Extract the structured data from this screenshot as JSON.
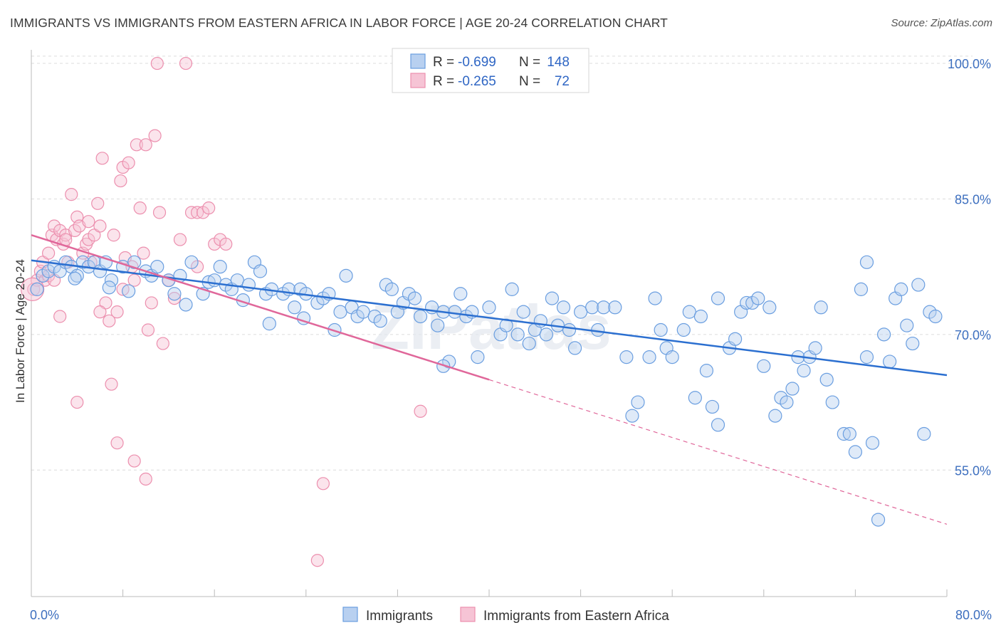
{
  "title": "IMMIGRANTS VS IMMIGRANTS FROM EASTERN AFRICA IN LABOR FORCE | AGE 20-24 CORRELATION CHART",
  "source": "Source: ZipAtlas.com",
  "watermark": "ZIPatlas",
  "colors": {
    "blue": "#6a9ee0",
    "blue_fill": "#b8d0f0",
    "blue_line": "#2b6fd0",
    "pink": "#ec8fae",
    "pink_fill": "#f6c4d5",
    "pink_line": "#e0679a",
    "tick_text": "#3d6fbf"
  },
  "legend": {
    "rows": [
      {
        "r_label": "R =",
        "r_value": "-0.699",
        "n_label": "N =",
        "n_value": "148"
      },
      {
        "r_label": "R =",
        "r_value": "-0.265",
        "n_label": "N =",
        "n_value": "72"
      }
    ]
  },
  "chart_data": {
    "type": "scatter",
    "ylabel": "In Labor Force | Age 20-24",
    "x_tick_labels": [
      "0.0%",
      "80.0%"
    ],
    "y_tick_labels": [
      "100.0%",
      "85.0%",
      "70.0%",
      "55.0%"
    ],
    "y_ticks": [
      100,
      85,
      70,
      55
    ],
    "xlim": [
      0,
      80
    ],
    "ylim": [
      41,
      101.5
    ],
    "grid": true,
    "legend_position": "top-center",
    "series": [
      {
        "name": "Immigrants",
        "R": -0.699,
        "N": 148,
        "trend": {
          "x": [
            0,
            80
          ],
          "y": [
            78.2,
            65.5
          ]
        },
        "points": [
          [
            0.5,
            75
          ],
          [
            1,
            76.5
          ],
          [
            1.5,
            77
          ],
          [
            2,
            77.5
          ],
          [
            2.5,
            77
          ],
          [
            3,
            78
          ],
          [
            3.5,
            77.5
          ],
          [
            4,
            76.5
          ],
          [
            4.5,
            78
          ],
          [
            5,
            77.5
          ],
          [
            5.5,
            78
          ],
          [
            6,
            77
          ],
          [
            6.5,
            78
          ],
          [
            7,
            76
          ],
          [
            8,
            77.5
          ],
          [
            9,
            78
          ],
          [
            10,
            77
          ],
          [
            10.5,
            76.5
          ],
          [
            11,
            77.5
          ],
          [
            12,
            76
          ],
          [
            12.5,
            74.5
          ],
          [
            13,
            76.5
          ],
          [
            14,
            78
          ],
          [
            15,
            74.5
          ],
          [
            15.5,
            75.8
          ],
          [
            16,
            76
          ],
          [
            16.5,
            77.5
          ],
          [
            17,
            75.5
          ],
          [
            17.5,
            75
          ],
          [
            18,
            76
          ],
          [
            19,
            75.5
          ],
          [
            19.5,
            78
          ],
          [
            20,
            77
          ],
          [
            20.5,
            74.5
          ],
          [
            21,
            75
          ],
          [
            22,
            74.5
          ],
          [
            22.5,
            75
          ],
          [
            23,
            73
          ],
          [
            23.5,
            75
          ],
          [
            24,
            74.5
          ],
          [
            25,
            73.5
          ],
          [
            25.5,
            74
          ],
          [
            26,
            74.5
          ],
          [
            27,
            72.5
          ],
          [
            27.5,
            76.5
          ],
          [
            28,
            73
          ],
          [
            28.5,
            72
          ],
          [
            29,
            72.5
          ],
          [
            30,
            72
          ],
          [
            31,
            75.5
          ],
          [
            31.5,
            75
          ],
          [
            32,
            72.5
          ],
          [
            32.5,
            73.5
          ],
          [
            33,
            74.5
          ],
          [
            33.5,
            74
          ],
          [
            34,
            72
          ],
          [
            35,
            73
          ],
          [
            35.5,
            71
          ],
          [
            36,
            72.5
          ],
          [
            36.5,
            67
          ],
          [
            37,
            72.5
          ],
          [
            37.5,
            74.5
          ],
          [
            38,
            72
          ],
          [
            38.5,
            72.5
          ],
          [
            39,
            67.5
          ],
          [
            40,
            73
          ],
          [
            41,
            70
          ],
          [
            41.5,
            71
          ],
          [
            42,
            75
          ],
          [
            42.5,
            70
          ],
          [
            43,
            72.5
          ],
          [
            44,
            70.5
          ],
          [
            45,
            70
          ],
          [
            45.5,
            74
          ],
          [
            46,
            71
          ],
          [
            47,
            70.5
          ],
          [
            47.5,
            68.5
          ],
          [
            48,
            72.5
          ],
          [
            49,
            73
          ],
          [
            49.5,
            70.5
          ],
          [
            50,
            73
          ],
          [
            51,
            73
          ],
          [
            52,
            67.5
          ],
          [
            52.5,
            61
          ],
          [
            53,
            62.5
          ],
          [
            54,
            67.5
          ],
          [
            54.5,
            74
          ],
          [
            55,
            70.5
          ],
          [
            55.5,
            68.5
          ],
          [
            56,
            67.5
          ],
          [
            57,
            70.5
          ],
          [
            57.5,
            72.5
          ],
          [
            58,
            63
          ],
          [
            58.5,
            72
          ],
          [
            59,
            66
          ],
          [
            59.5,
            62
          ],
          [
            60,
            74
          ],
          [
            61,
            68.5
          ],
          [
            61.5,
            69.5
          ],
          [
            62,
            72.5
          ],
          [
            62.5,
            73.5
          ],
          [
            63,
            73.5
          ],
          [
            63.5,
            74
          ],
          [
            64,
            66.5
          ],
          [
            64.5,
            73
          ],
          [
            65,
            61
          ],
          [
            65.5,
            63
          ],
          [
            66,
            62.5
          ],
          [
            66.5,
            64
          ],
          [
            67,
            67.5
          ],
          [
            67.5,
            66
          ],
          [
            68,
            67.5
          ],
          [
            68.5,
            68.5
          ],
          [
            69,
            73
          ],
          [
            69.5,
            65
          ],
          [
            70,
            62.5
          ],
          [
            71,
            59
          ],
          [
            71.5,
            59
          ],
          [
            72,
            57
          ],
          [
            72.5,
            75
          ],
          [
            73,
            78
          ],
          [
            73.5,
            58
          ],
          [
            74,
            49.5
          ],
          [
            74.5,
            70
          ],
          [
            75,
            67
          ],
          [
            75.5,
            74
          ],
          [
            76,
            75
          ],
          [
            76.5,
            71
          ],
          [
            77,
            69
          ],
          [
            77.5,
            75.5
          ],
          [
            78,
            59
          ],
          [
            78.5,
            72.5
          ],
          [
            79,
            72
          ],
          [
            73,
            67.5
          ],
          [
            60,
            60
          ],
          [
            46.5,
            73
          ],
          [
            44.5,
            71.5
          ],
          [
            43.5,
            69
          ],
          [
            36,
            66.5
          ],
          [
            30.5,
            71.5
          ],
          [
            26.5,
            70.5
          ],
          [
            23.8,
            71.8
          ],
          [
            20.8,
            71.2
          ],
          [
            18.5,
            73.8
          ],
          [
            13.5,
            73.3
          ],
          [
            8.5,
            74.8
          ],
          [
            6.8,
            75.2
          ],
          [
            3.8,
            76.2
          ]
        ]
      },
      {
        "name": "Immigrants from Eastern Africa",
        "R": -0.265,
        "N": 72,
        "trend": {
          "x": [
            0,
            40
          ],
          "y": [
            81,
            65
          ]
        },
        "trend_extension": {
          "x": [
            40,
            80
          ],
          "y": [
            65,
            49
          ]
        },
        "points": [
          [
            0.2,
            75
          ],
          [
            0.5,
            76
          ],
          [
            0.8,
            77
          ],
          [
            1,
            78
          ],
          [
            1.2,
            76
          ],
          [
            1.5,
            76.5
          ],
          [
            1.8,
            81
          ],
          [
            2,
            82
          ],
          [
            2.2,
            80.5
          ],
          [
            2.5,
            81.5
          ],
          [
            2.8,
            80
          ],
          [
            3,
            81
          ],
          [
            3.2,
            78
          ],
          [
            3.5,
            85.5
          ],
          [
            3.8,
            81.5
          ],
          [
            4,
            83
          ],
          [
            4.2,
            82
          ],
          [
            4.5,
            79
          ],
          [
            4.8,
            80
          ],
          [
            5,
            80.5
          ],
          [
            5.2,
            78
          ],
          [
            5.5,
            81
          ],
          [
            5.8,
            84.5
          ],
          [
            6,
            82
          ],
          [
            6.2,
            89.5
          ],
          [
            6.5,
            73.5
          ],
          [
            6.8,
            71.5
          ],
          [
            7,
            64.5
          ],
          [
            7.2,
            81
          ],
          [
            7.5,
            72.5
          ],
          [
            7.8,
            87
          ],
          [
            8,
            88.5
          ],
          [
            8.2,
            78.5
          ],
          [
            8.5,
            89
          ],
          [
            8.8,
            77.5
          ],
          [
            9,
            76
          ],
          [
            9.2,
            91
          ],
          [
            9.5,
            84
          ],
          [
            9.8,
            79
          ],
          [
            10,
            91
          ],
          [
            10.2,
            70.5
          ],
          [
            10.5,
            73.5
          ],
          [
            10.8,
            92
          ],
          [
            11,
            100
          ],
          [
            11.2,
            83.5
          ],
          [
            11.5,
            69
          ],
          [
            12,
            76
          ],
          [
            12.5,
            74
          ],
          [
            13,
            80.5
          ],
          [
            13.5,
            100
          ],
          [
            14,
            83.5
          ],
          [
            14.5,
            83.5
          ],
          [
            15,
            83.5
          ],
          [
            15.5,
            84
          ],
          [
            16,
            80
          ],
          [
            16.5,
            80.5
          ],
          [
            17,
            80
          ],
          [
            9,
            56
          ],
          [
            10,
            54
          ],
          [
            7.5,
            58
          ],
          [
            2.5,
            72
          ],
          [
            6,
            72.5
          ],
          [
            25.5,
            53.5
          ],
          [
            25,
            45
          ],
          [
            34,
            61.5
          ],
          [
            4,
            62.5
          ],
          [
            2,
            76
          ],
          [
            1.5,
            79
          ],
          [
            3,
            80.5
          ],
          [
            5,
            82.5
          ],
          [
            8,
            75
          ],
          [
            14.5,
            77.5
          ]
        ]
      }
    ]
  }
}
